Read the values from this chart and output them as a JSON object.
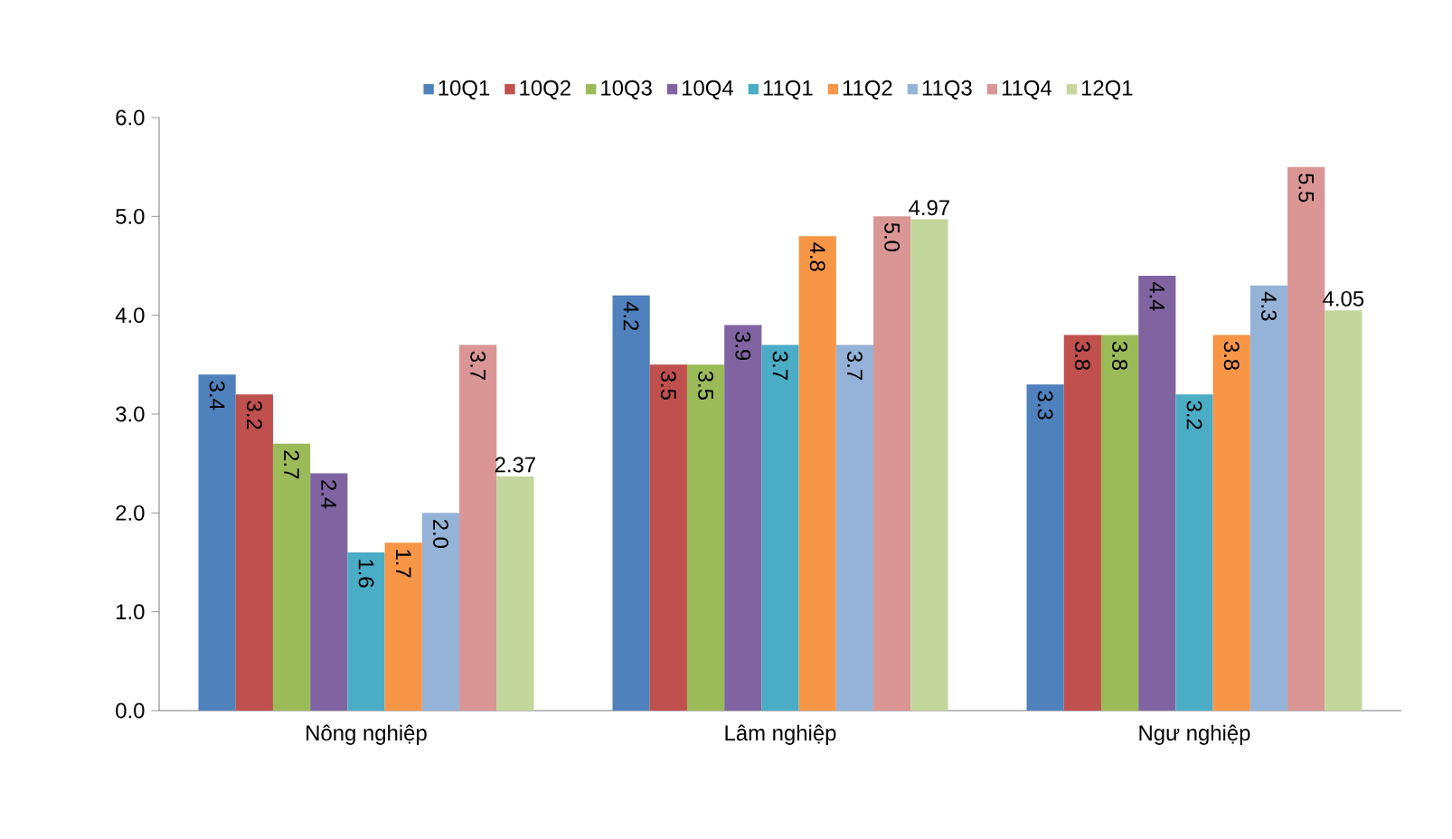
{
  "chart_data": {
    "type": "bar",
    "categories": [
      "Nông nghiệp",
      "Lâm nghiệp",
      "Ngư nghiệp"
    ],
    "series": [
      {
        "name": "10Q1",
        "color": "#4f81bd",
        "values": [
          3.4,
          4.2,
          3.3
        ],
        "value_labels": [
          "3.4",
          "4.2",
          "3.3"
        ]
      },
      {
        "name": "10Q2",
        "color": "#c0504d",
        "values": [
          3.2,
          3.5,
          3.8
        ],
        "value_labels": [
          "3.2",
          "3.5",
          "3.8"
        ]
      },
      {
        "name": "10Q3",
        "color": "#9bbb59",
        "values": [
          2.7,
          3.5,
          3.8
        ],
        "value_labels": [
          "2.7",
          "3.5",
          "3.8"
        ]
      },
      {
        "name": "10Q4",
        "color": "#8064a2",
        "values": [
          2.4,
          3.9,
          4.4
        ],
        "value_labels": [
          "2.4",
          "3.9",
          "4.4"
        ]
      },
      {
        "name": "11Q1",
        "color": "#4bacc6",
        "values": [
          1.6,
          3.7,
          3.2
        ],
        "value_labels": [
          "1.6",
          "3.7",
          "3.2"
        ]
      },
      {
        "name": "11Q2",
        "color": "#f79646",
        "values": [
          1.7,
          4.8,
          3.8
        ],
        "value_labels": [
          "1.7",
          "4.8",
          "3.8"
        ]
      },
      {
        "name": "11Q3",
        "color": "#95b3d7",
        "values": [
          2.0,
          3.7,
          4.3
        ],
        "value_labels": [
          "2.0",
          "3.7",
          "4.3"
        ]
      },
      {
        "name": "11Q4",
        "color": "#d99694",
        "values": [
          3.7,
          5.0,
          5.5
        ],
        "value_labels": [
          "3.7",
          "5.0",
          "5.5"
        ]
      },
      {
        "name": "12Q1",
        "color": "#c3d69b",
        "values": [
          2.37,
          4.97,
          4.05
        ],
        "value_labels": [
          "2.37",
          "4.97",
          "4.05"
        ]
      }
    ],
    "ylim": [
      0,
      6
    ],
    "yticks": [
      {
        "value": 0,
        "label": "0.0"
      },
      {
        "value": 1,
        "label": "1.0"
      },
      {
        "value": 2,
        "label": "2.0"
      },
      {
        "value": 3,
        "label": "3.0"
      },
      {
        "value": 4,
        "label": "4.0"
      },
      {
        "value": 5,
        "label": "5.0"
      },
      {
        "value": 6,
        "label": "6.0"
      }
    ],
    "grid": false,
    "legend": "top"
  }
}
